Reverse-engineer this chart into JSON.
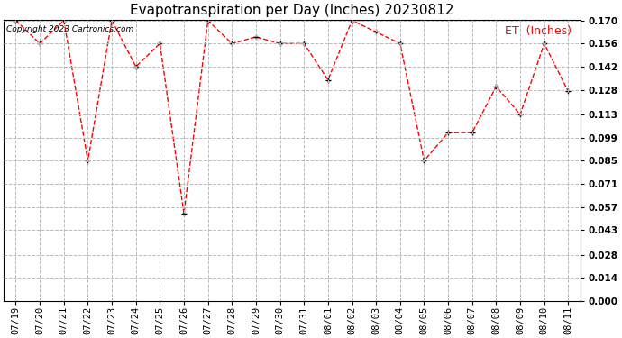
{
  "title": "Evapotranspiration per Day (Inches) 20230812",
  "legend_label": "ET  (Inches)",
  "copyright": "Copyright 2023 Cartronics.com",
  "dates": [
    "07/19",
    "07/20",
    "07/21",
    "07/22",
    "07/23",
    "07/24",
    "07/25",
    "07/26",
    "07/27",
    "07/28",
    "07/29",
    "07/30",
    "07/31",
    "08/01",
    "08/02",
    "08/03",
    "08/04",
    "08/05",
    "08/06",
    "08/07",
    "08/08",
    "08/09",
    "08/10",
    "08/11"
  ],
  "values": [
    0.17,
    0.156,
    0.17,
    0.085,
    0.17,
    0.142,
    0.156,
    0.053,
    0.17,
    0.156,
    0.16,
    0.156,
    0.156,
    0.134,
    0.17,
    0.163,
    0.156,
    0.085,
    0.102,
    0.102,
    0.13,
    0.113,
    0.156,
    0.127
  ],
  "ylim": [
    0.0,
    0.17
  ],
  "yticks": [
    0.0,
    0.014,
    0.028,
    0.043,
    0.057,
    0.071,
    0.085,
    0.099,
    0.113,
    0.128,
    0.142,
    0.156,
    0.17
  ],
  "line_color": "red",
  "marker": "+",
  "marker_color": "black",
  "grid_color": "#bbbbbb",
  "background_color": "white",
  "title_fontsize": 11,
  "tick_fontsize": 7.5,
  "legend_fontsize": 9,
  "copyright_fontsize": 6.5
}
